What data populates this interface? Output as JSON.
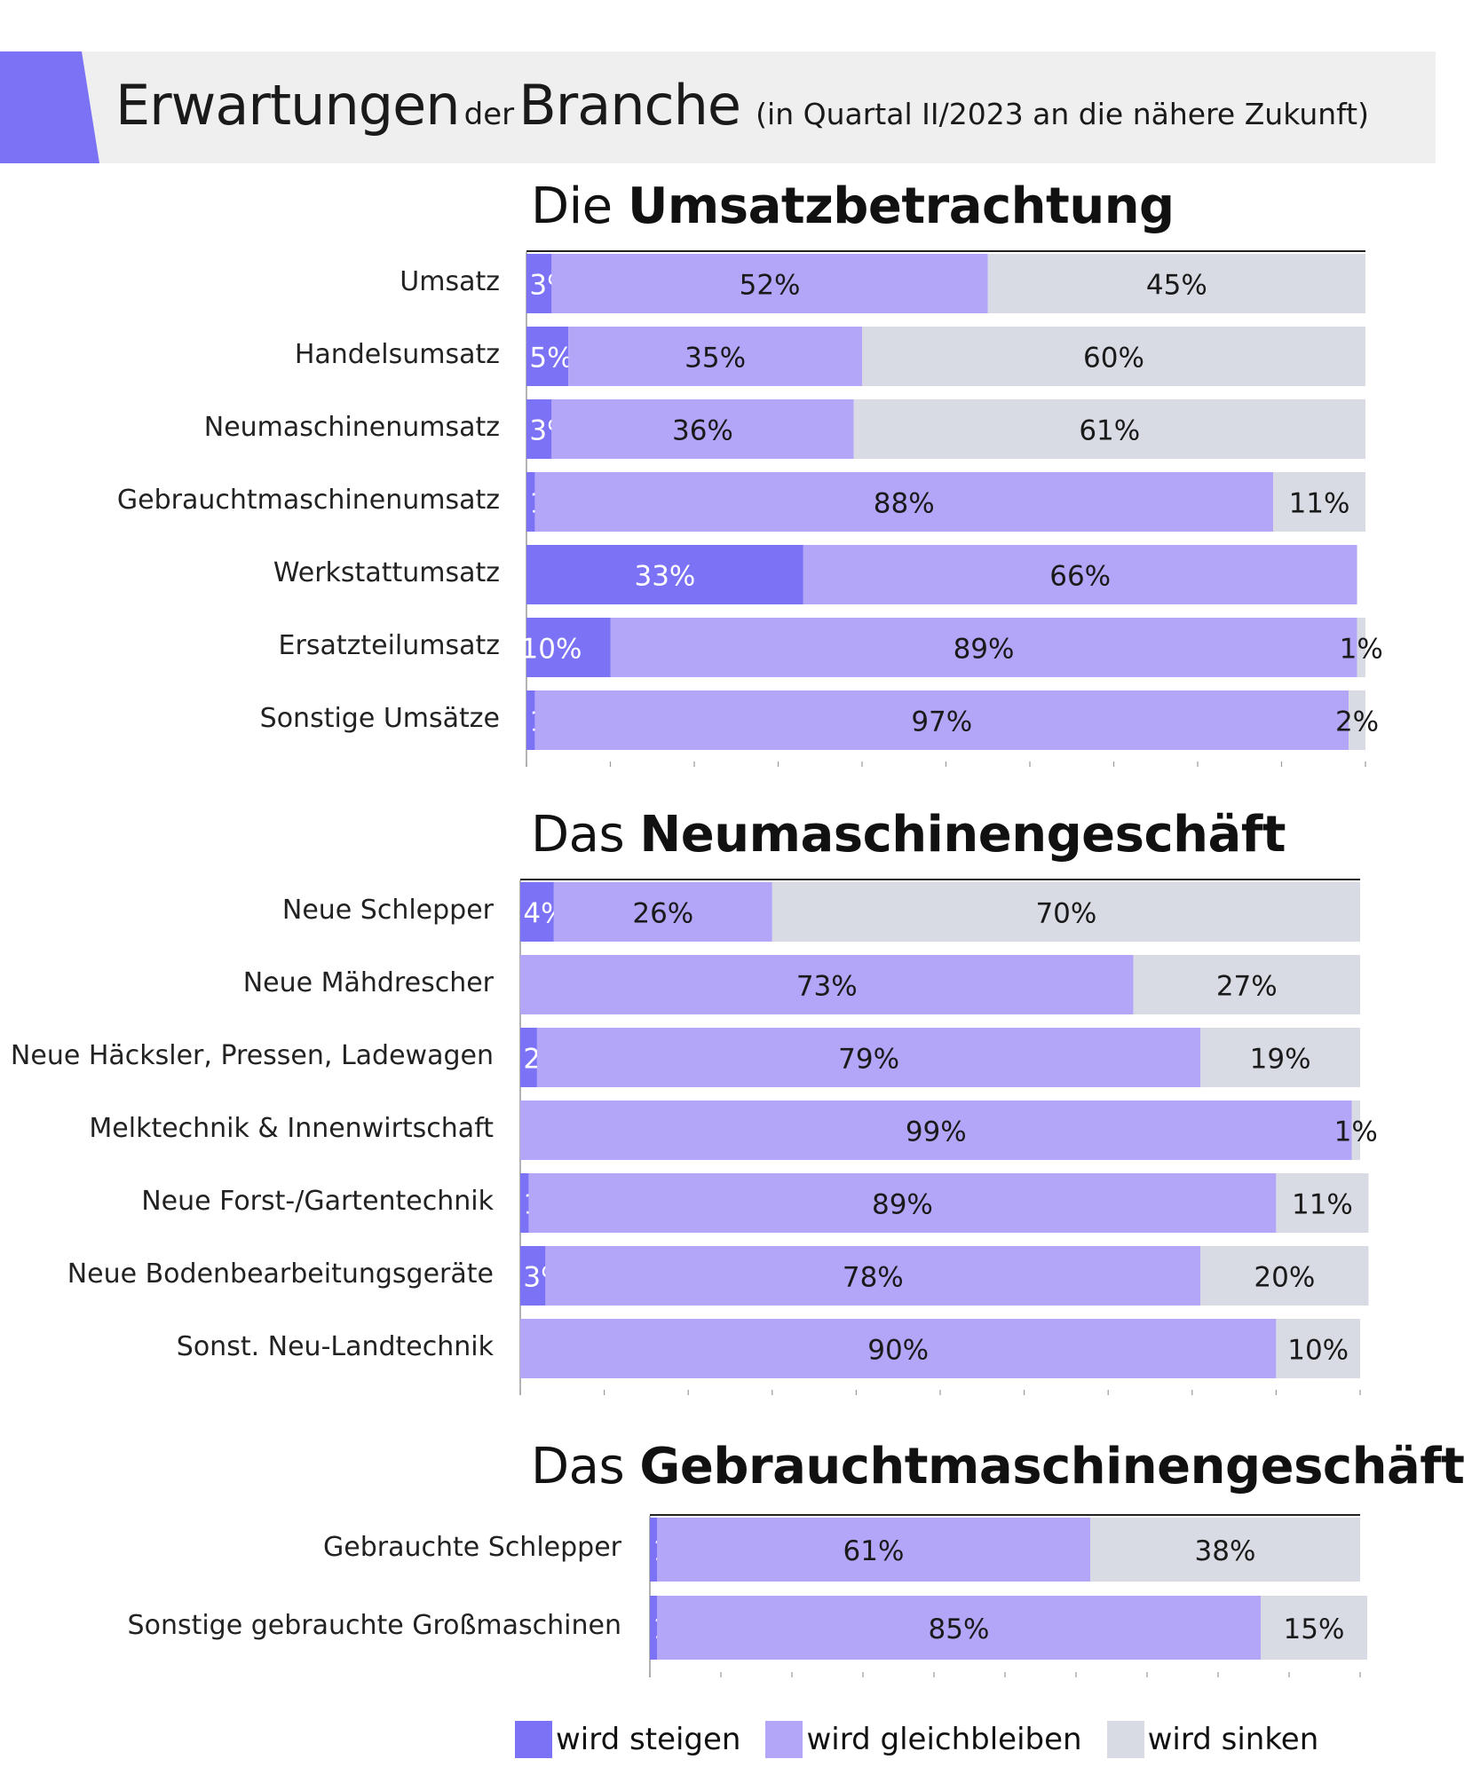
{
  "header": {
    "word1": "Erwartungen",
    "word2": "der",
    "word3": "Branche",
    "subtitle": "(in Quartal II/2023 an die nähere Zukunft)"
  },
  "colors": {
    "accent": "#7b72f5",
    "steigen": "#7b72f5",
    "gleich": "#b3a6f8",
    "sinken": "#d8dbe3",
    "header_bg": "#efefef"
  },
  "legend": {
    "steigen": "wird steigen",
    "gleich": "wird gleichbleiben",
    "sinken": "wird sinken"
  },
  "chart_data": [
    {
      "type": "bar",
      "orientation": "horizontal",
      "stacked": "percent",
      "title_prefix": "Die",
      "title_bold": "Umsatzbetrachtung",
      "categories": [
        "Umsatz",
        "Handelsumsatz",
        "Neumaschinenumsatz",
        "Gebrauchtmaschinenumsatz",
        "Werkstattumsatz",
        "Ersatzteilumsatz",
        "Sonstige Umsätze"
      ],
      "series": [
        {
          "name": "wird steigen",
          "values": [
            3,
            5,
            3,
            1,
            33,
            10,
            1
          ],
          "labels": [
            "3%",
            "5%",
            "3%",
            "1%",
            "33%",
            "10%",
            "1%"
          ]
        },
        {
          "name": "wird gleichbleiben",
          "values": [
            52,
            35,
            36,
            88,
            66,
            89,
            97
          ],
          "labels": [
            "52%",
            "35%",
            "36%",
            "88%",
            "66%",
            "89%",
            "97%"
          ]
        },
        {
          "name": "wird sinken",
          "values": [
            45,
            60,
            61,
            11,
            0,
            1,
            2
          ],
          "labels": [
            "45%",
            "60%",
            "61%",
            "11%",
            "",
            "1%",
            "2%"
          ]
        }
      ],
      "xlim": [
        0,
        100
      ]
    },
    {
      "type": "bar",
      "orientation": "horizontal",
      "stacked": "percent",
      "title_prefix": "Das",
      "title_bold": "Neumaschinengeschäft",
      "categories": [
        "Neue Schlepper",
        "Neue Mähdrescher",
        "Neue Häcksler, Pressen, Ladewagen",
        "Melktechnik & Innenwirtschaft",
        "Neue Forst-/Gartentechnik",
        "Neue Bodenbearbeitungsgeräte",
        "Sonst. Neu-Landtechnik"
      ],
      "series": [
        {
          "name": "wird steigen",
          "values": [
            4,
            0,
            2,
            0,
            1,
            3,
            0
          ],
          "labels": [
            "4%",
            "",
            "2%",
            "",
            "1%",
            "3%",
            ""
          ]
        },
        {
          "name": "wird gleichbleiben",
          "values": [
            26,
            73,
            79,
            99,
            89,
            78,
            90
          ],
          "labels": [
            "26%",
            "73%",
            "79%",
            "99%",
            "89%",
            "78%",
            "90%"
          ]
        },
        {
          "name": "wird sinken",
          "values": [
            70,
            27,
            19,
            1,
            11,
            20,
            10
          ],
          "labels": [
            "70%",
            "27%",
            "19%",
            "1%",
            "11%",
            "20%",
            "10%"
          ]
        }
      ],
      "xlim": [
        0,
        100
      ]
    },
    {
      "type": "bar",
      "orientation": "horizontal",
      "stacked": "percent",
      "title_prefix": "Das",
      "title_bold": "Gebrauchtmaschinengeschäft",
      "categories": [
        "Gebrauchte Schlepper",
        "Sonstige gebrauchte Großmaschinen"
      ],
      "series": [
        {
          "name": "wird steigen",
          "values": [
            1,
            1
          ],
          "labels": [
            "1%",
            "1%"
          ]
        },
        {
          "name": "wird gleichbleiben",
          "values": [
            61,
            85
          ],
          "labels": [
            "61%",
            "85%"
          ]
        },
        {
          "name": "wird sinken",
          "values": [
            38,
            15
          ],
          "labels": [
            "38%",
            "15%"
          ]
        }
      ],
      "xlim": [
        0,
        100
      ]
    }
  ]
}
